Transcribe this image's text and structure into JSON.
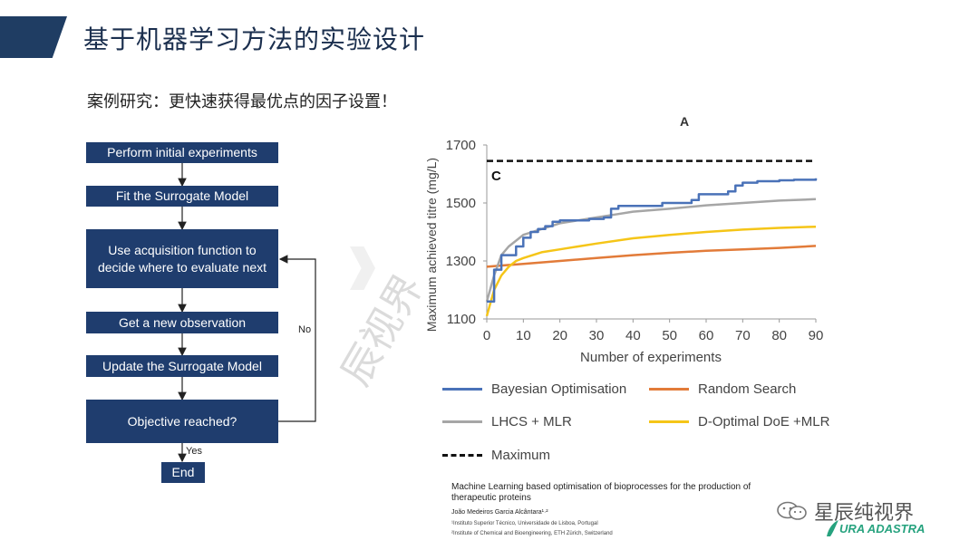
{
  "header": {
    "title": "基于机器学习方法的实验设计"
  },
  "subtitle": "案例研究：更快速获得最优点的因子设置！",
  "flowchart": {
    "steps": [
      "Perform initial experiments",
      "Fit the Surrogate Model",
      "Use acquisition function to decide where to evaluate next",
      "Get a new observation",
      "Update the Surrogate Model",
      "Objective reached?",
      "End"
    ],
    "no_label": "No",
    "yes_label": "Yes"
  },
  "watermark": "辰视界",
  "chart_data": {
    "type": "line",
    "panel_letter": "A",
    "panel_tag": "C",
    "xlabel": "Number of experiments",
    "ylabel": "Maximum achieved titre (mg/L)",
    "xlim": [
      0,
      90
    ],
    "ylim": [
      1100,
      1700
    ],
    "xticks": [
      0,
      10,
      20,
      30,
      40,
      50,
      60,
      70,
      80,
      90
    ],
    "yticks": [
      1100,
      1300,
      1500,
      1700
    ],
    "series": [
      {
        "name": "Bayesian Optimisation",
        "color": "#4a72b8",
        "step": true,
        "points": [
          [
            0,
            1160
          ],
          [
            2,
            1270
          ],
          [
            4,
            1320
          ],
          [
            6,
            1320
          ],
          [
            8,
            1350
          ],
          [
            10,
            1380
          ],
          [
            12,
            1400
          ],
          [
            14,
            1410
          ],
          [
            16,
            1420
          ],
          [
            18,
            1435
          ],
          [
            20,
            1440
          ],
          [
            24,
            1440
          ],
          [
            28,
            1445
          ],
          [
            32,
            1450
          ],
          [
            34,
            1480
          ],
          [
            36,
            1490
          ],
          [
            40,
            1490
          ],
          [
            46,
            1490
          ],
          [
            48,
            1500
          ],
          [
            54,
            1500
          ],
          [
            56,
            1510
          ],
          [
            58,
            1530
          ],
          [
            64,
            1530
          ],
          [
            66,
            1540
          ],
          [
            68,
            1560
          ],
          [
            70,
            1570
          ],
          [
            74,
            1575
          ],
          [
            80,
            1578
          ],
          [
            84,
            1580
          ],
          [
            90,
            1585
          ]
        ]
      },
      {
        "name": "Random Search",
        "color": "#e27b39",
        "points": [
          [
            0,
            1280
          ],
          [
            5,
            1285
          ],
          [
            10,
            1290
          ],
          [
            20,
            1300
          ],
          [
            30,
            1310
          ],
          [
            40,
            1320
          ],
          [
            50,
            1328
          ],
          [
            60,
            1335
          ],
          [
            70,
            1340
          ],
          [
            80,
            1345
          ],
          [
            90,
            1352
          ]
        ]
      },
      {
        "name": "LHCS + MLR",
        "color": "#a6a6a6",
        "points": [
          [
            0,
            1160
          ],
          [
            2,
            1250
          ],
          [
            4,
            1320
          ],
          [
            6,
            1350
          ],
          [
            8,
            1370
          ],
          [
            10,
            1390
          ],
          [
            15,
            1410
          ],
          [
            20,
            1430
          ],
          [
            25,
            1440
          ],
          [
            30,
            1450
          ],
          [
            35,
            1460
          ],
          [
            40,
            1470
          ],
          [
            50,
            1480
          ],
          [
            60,
            1492
          ],
          [
            70,
            1500
          ],
          [
            80,
            1508
          ],
          [
            90,
            1513
          ]
        ]
      },
      {
        "name": "D-Optimal DoE +MLR",
        "color": "#f5c518",
        "points": [
          [
            0,
            1110
          ],
          [
            2,
            1200
          ],
          [
            4,
            1250
          ],
          [
            6,
            1280
          ],
          [
            8,
            1300
          ],
          [
            10,
            1310
          ],
          [
            15,
            1330
          ],
          [
            20,
            1340
          ],
          [
            25,
            1350
          ],
          [
            30,
            1360
          ],
          [
            40,
            1378
          ],
          [
            50,
            1390
          ],
          [
            60,
            1400
          ],
          [
            70,
            1408
          ],
          [
            80,
            1414
          ],
          [
            90,
            1418
          ]
        ]
      },
      {
        "name": "Maximum",
        "color": "#111111",
        "dashed": true,
        "points": [
          [
            0,
            1645
          ],
          [
            90,
            1645
          ]
        ]
      }
    ]
  },
  "reference": {
    "title": "Machine Learning based optimisation of bioprocesses for the production of therapeutic proteins",
    "author": "João Medeiros Garcia Alcântara¹·²",
    "affiliation_1": "¹Instituto Superior Técnico, Universidade de Lisboa, Portugal",
    "affiliation_2": "²Institute of Chemical and Bioengineering, ETH Zürich, Switzerland"
  },
  "wechat": {
    "icon": "wechat-icon",
    "account": "星辰纯视界"
  },
  "brand": "URA ADASTRA"
}
